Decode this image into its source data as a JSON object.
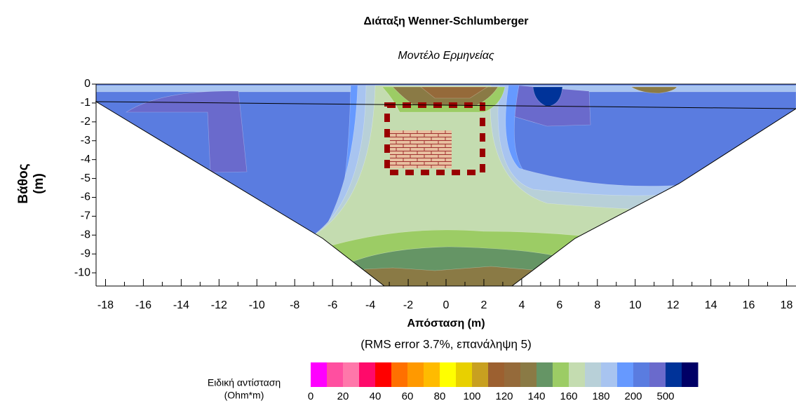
{
  "chart_data": {
    "type": "contour",
    "title": "Διάταξη Wenner-Schlumberger",
    "subtitle": "Μοντέλο Ερμηνείας",
    "x_label": "Απόσταση (m)",
    "y_label": [
      "Βάθος",
      "(m)"
    ],
    "note": "(RMS error 3.7%, επανάληψη 5)",
    "xlim": [
      -18.5,
      18.5
    ],
    "xticks": [
      -18,
      -16,
      -14,
      -12,
      -10,
      -8,
      -6,
      -4,
      -2,
      0,
      2,
      4,
      6,
      8,
      10,
      12,
      14,
      16,
      18
    ],
    "ylim": [
      -10.7,
      0
    ],
    "yticks": [
      0,
      -1,
      -2,
      -3,
      -4,
      -5,
      -6,
      -7,
      -8,
      -9,
      -10
    ],
    "colorbar": {
      "label": [
        "Ειδική αντίσταση",
        "(Ohm*m)"
      ],
      "colors": [
        "#ff00ff",
        "#ff4fa0",
        "#ff77aa",
        "#ff0a6a",
        "#ff0000",
        "#ff7000",
        "#ff9900",
        "#ffbb00",
        "#ffff00",
        "#e8d000",
        "#c8a020",
        "#9c6030",
        "#956a3a",
        "#8a7a45",
        "#659565",
        "#9ccc65",
        "#c4dcb0",
        "#b8d0d8",
        "#a8c4f0",
        "#6699ff",
        "#5a7ce0",
        "#6a6acc",
        "#003399",
        "#000066"
      ],
      "ticks": [
        0,
        20,
        40,
        60,
        80,
        100,
        120,
        140,
        160,
        180,
        200,
        500
      ]
    }
  }
}
